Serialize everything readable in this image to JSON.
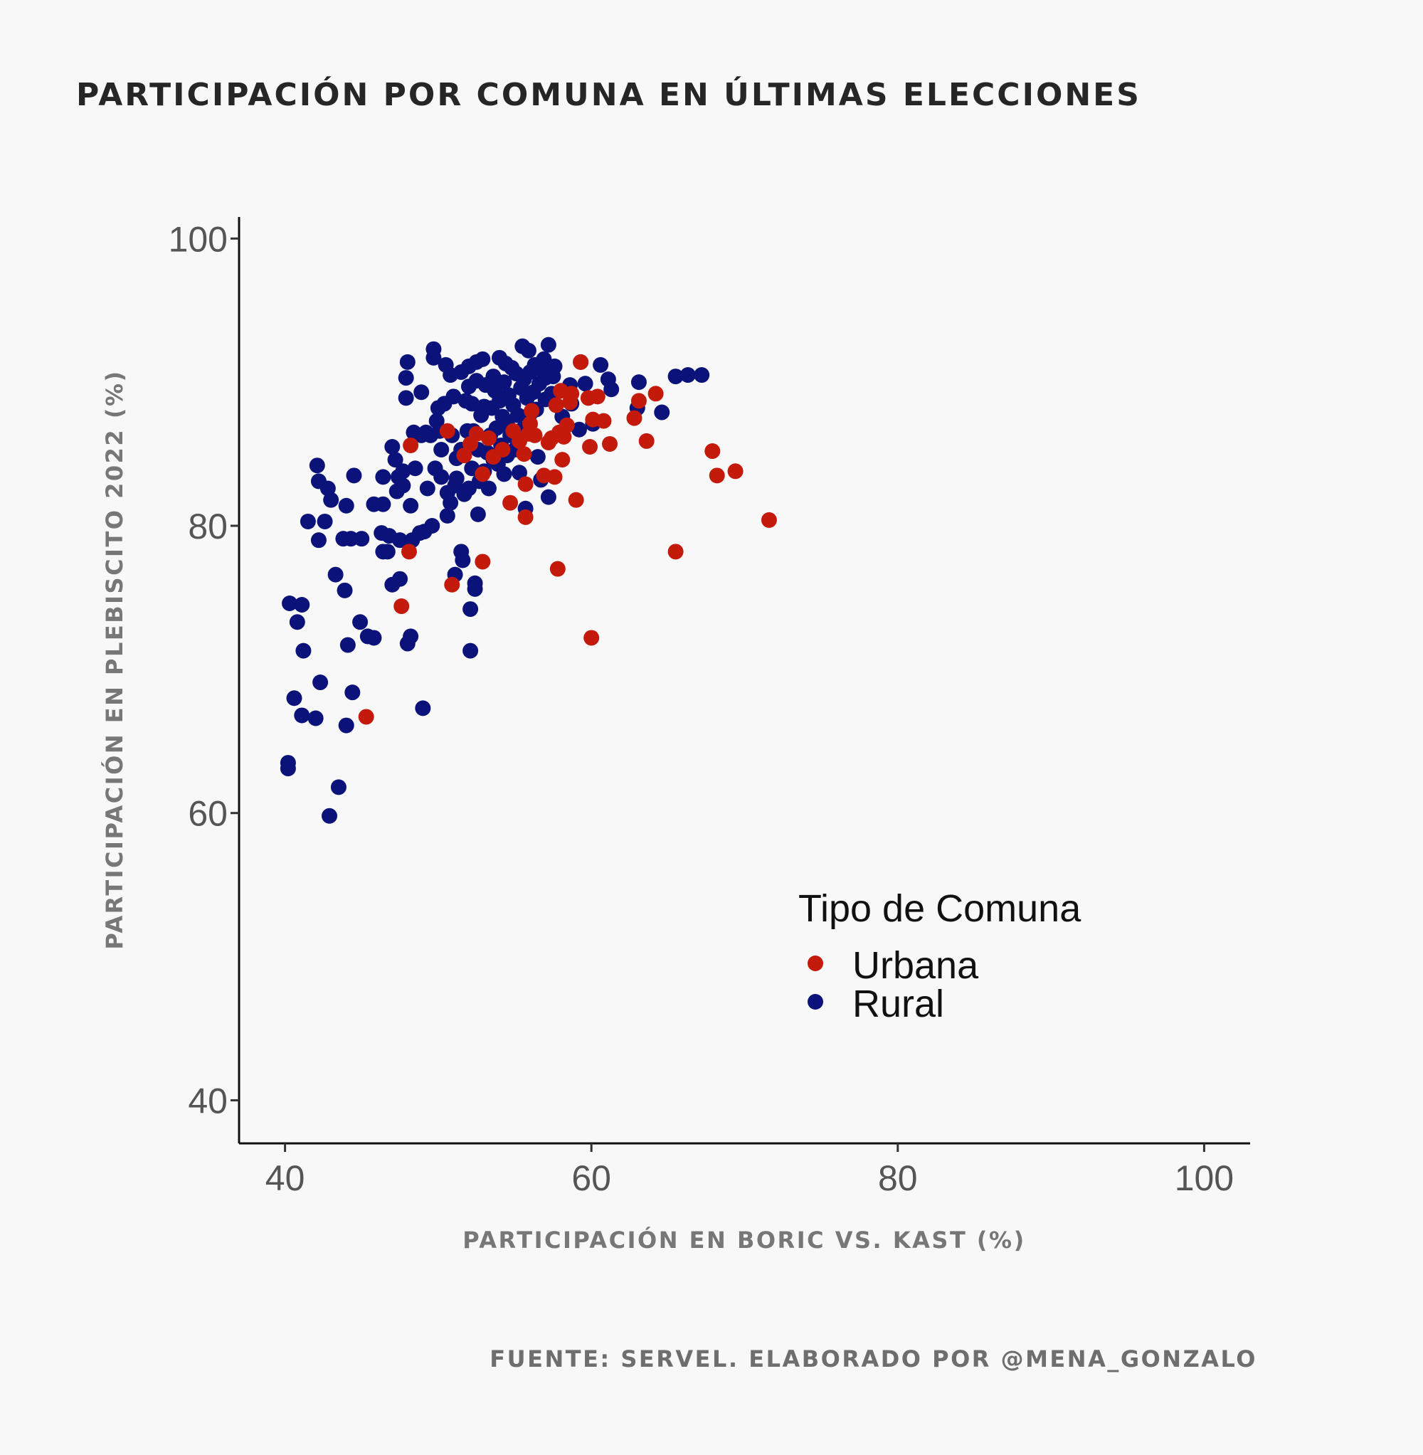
{
  "title": "PARTICIPACIÓN POR COMUNA EN ÚLTIMAS ELECCIONES",
  "footer": "FUENTE: SERVEL. ELABORADO POR @MENA_GONZALO",
  "colors": {
    "background": "#f8f8f8",
    "urbana": "#c41a0c",
    "rural": "#0b137a"
  },
  "chart_data": {
    "type": "scatter",
    "title": "PARTICIPACIÓN POR COMUNA EN ÚLTIMAS ELECCIONES",
    "xlabel": "PARTICIPACIÓN EN BORIC VS. KAST (%)",
    "ylabel": "PARTICIPACIÓN EN PLEBISCITO 2022 (%)",
    "xlim": [
      37,
      103
    ],
    "ylim": [
      37,
      101.5
    ],
    "xticks": [
      40,
      60,
      80,
      100
    ],
    "yticks": [
      40,
      60,
      80,
      100
    ],
    "grid": false,
    "legend": {
      "title": "Tipo de Comuna",
      "position": "inside-right",
      "entries": [
        "Urbana",
        "Rural"
      ]
    },
    "series": [
      {
        "name": "Rural",
        "color": "#0b137a",
        "points": [
          [
            40.2,
            63.5
          ],
          [
            40.2,
            63.1
          ],
          [
            40.3,
            74.6
          ],
          [
            40.6,
            68
          ],
          [
            40.8,
            73.3
          ],
          [
            41.1,
            74.5
          ],
          [
            41.1,
            66.8
          ],
          [
            41.2,
            71.3
          ],
          [
            41.5,
            80.3
          ],
          [
            42,
            66.6
          ],
          [
            42.1,
            84.2
          ],
          [
            42.2,
            79
          ],
          [
            42.2,
            83.1
          ],
          [
            42.3,
            69.1
          ],
          [
            42.6,
            80.3
          ],
          [
            42.8,
            82.6
          ],
          [
            42.9,
            59.8
          ],
          [
            43,
            81.8
          ],
          [
            43.3,
            76.6
          ],
          [
            43.5,
            61.8
          ],
          [
            43.8,
            79.1
          ],
          [
            43.9,
            75.5
          ],
          [
            44,
            66.1
          ],
          [
            44,
            81.4
          ],
          [
            44.1,
            71.7
          ],
          [
            44.3,
            79.1
          ],
          [
            44.4,
            68.4
          ],
          [
            44.5,
            83.5
          ],
          [
            44.9,
            73.3
          ],
          [
            45,
            79.1
          ],
          [
            45.4,
            72.3
          ],
          [
            45.8,
            72.2
          ],
          [
            45.8,
            81.5
          ],
          [
            46.4,
            81.5
          ],
          [
            46.3,
            79.5
          ],
          [
            46.4,
            83.4
          ],
          [
            46.4,
            78.2
          ],
          [
            46.7,
            78.2
          ],
          [
            46.8,
            79.3
          ],
          [
            47,
            75.9
          ],
          [
            47,
            85.5
          ],
          [
            47.2,
            84.6
          ],
          [
            47.4,
            83.4
          ],
          [
            47.3,
            82.4
          ],
          [
            47.5,
            76.3
          ],
          [
            47.5,
            79
          ],
          [
            47.7,
            83.8
          ],
          [
            47.7,
            82.8
          ],
          [
            47.9,
            90.3
          ],
          [
            47.9,
            88.9
          ],
          [
            48,
            91.4
          ],
          [
            48,
            71.8
          ],
          [
            48.2,
            81.4
          ],
          [
            48.2,
            72.3
          ],
          [
            48.4,
            86.5
          ],
          [
            48.3,
            79
          ],
          [
            48.5,
            84
          ],
          [
            48.8,
            79.5
          ],
          [
            48.9,
            86.3
          ],
          [
            48.9,
            89.3
          ],
          [
            49.2,
            86.5
          ],
          [
            49.1,
            79.6
          ],
          [
            49,
            67.3
          ],
          [
            49.3,
            82.6
          ],
          [
            49.5,
            86.3
          ],
          [
            49.6,
            80
          ],
          [
            49.7,
            91.7
          ],
          [
            49.7,
            92.3
          ],
          [
            49.8,
            84
          ],
          [
            49.9,
            87.3
          ],
          [
            50,
            88.2
          ],
          [
            50.1,
            86.6
          ],
          [
            50.2,
            85.3
          ],
          [
            50.2,
            83.4
          ],
          [
            50.4,
            88.5
          ],
          [
            50.5,
            91.2
          ],
          [
            50.6,
            80.7
          ],
          [
            50.6,
            82.3
          ],
          [
            50.8,
            90.5
          ],
          [
            50.8,
            81.6
          ],
          [
            50.9,
            86.3
          ],
          [
            51,
            89
          ],
          [
            51.1,
            82.8
          ],
          [
            51.2,
            84.7
          ],
          [
            51.1,
            76.6
          ],
          [
            51.2,
            83.3
          ],
          [
            51.5,
            90.7
          ],
          [
            51.5,
            85.3
          ],
          [
            51.5,
            78.2
          ],
          [
            51.6,
            77.6
          ],
          [
            51.7,
            82.2
          ],
          [
            51.8,
            88.7
          ],
          [
            51.9,
            86.6
          ],
          [
            52,
            89.7
          ],
          [
            52,
            91.1
          ],
          [
            52,
            82.6
          ],
          [
            52.1,
            71.3
          ],
          [
            52.1,
            74.2
          ],
          [
            52.2,
            84
          ],
          [
            52.3,
            86.6
          ],
          [
            52.2,
            88.5
          ],
          [
            52.4,
            75.6
          ],
          [
            52.4,
            76
          ],
          [
            52.5,
            91.4
          ],
          [
            52.5,
            90.1
          ],
          [
            52.6,
            80.8
          ],
          [
            52.6,
            85.3
          ],
          [
            52.7,
            83.1
          ],
          [
            52.8,
            87.7
          ],
          [
            52.9,
            91.6
          ],
          [
            53,
            88.3
          ],
          [
            53,
            83.8
          ],
          [
            53.1,
            89.8
          ],
          [
            53.2,
            85.1
          ],
          [
            53.3,
            82.6
          ],
          [
            53.4,
            86.3
          ],
          [
            53.5,
            88.2
          ],
          [
            53.6,
            84.6
          ],
          [
            53.6,
            90.4
          ],
          [
            53.7,
            89.4
          ],
          [
            53.8,
            86.8
          ],
          [
            53.9,
            84.3
          ],
          [
            54,
            91.7
          ],
          [
            54,
            88.7
          ],
          [
            54.1,
            85.6
          ],
          [
            54.2,
            87.6
          ],
          [
            54.3,
            90
          ],
          [
            54.3,
            83.6
          ],
          [
            54.4,
            91.3
          ],
          [
            54.5,
            87.1
          ],
          [
            54.5,
            84.9
          ],
          [
            54.6,
            89.1
          ],
          [
            54.7,
            86.3
          ],
          [
            54.8,
            91
          ],
          [
            54.9,
            88.4
          ],
          [
            55,
            85.3
          ],
          [
            55.1,
            90.6
          ],
          [
            55.2,
            87.7
          ],
          [
            55.3,
            83.7
          ],
          [
            55.4,
            89.6
          ],
          [
            55.5,
            92.5
          ],
          [
            55.5,
            86.7
          ],
          [
            55.6,
            90.2
          ],
          [
            55.7,
            81.2
          ],
          [
            55.8,
            88.9
          ],
          [
            55.9,
            92.2
          ],
          [
            56,
            90.7
          ],
          [
            56,
            87.8
          ],
          [
            56.2,
            89.3
          ],
          [
            56.3,
            91.2
          ],
          [
            56.4,
            88.1
          ],
          [
            56.5,
            84.8
          ],
          [
            56.6,
            89.9
          ],
          [
            56.7,
            83.2
          ],
          [
            56.7,
            90.9
          ],
          [
            56.9,
            91.6
          ],
          [
            57,
            88.8
          ],
          [
            57,
            90.3
          ],
          [
            57.2,
            92.6
          ],
          [
            57.2,
            82
          ],
          [
            57.4,
            89.2
          ],
          [
            57.5,
            90.4
          ],
          [
            57.6,
            91.1
          ],
          [
            57.7,
            88.4
          ],
          [
            58.1,
            87.6
          ],
          [
            58.6,
            89.8
          ],
          [
            58.7,
            88.5
          ],
          [
            59.2,
            86.7
          ],
          [
            59.3,
            91.4
          ],
          [
            59.6,
            89.9
          ],
          [
            60.1,
            87.1
          ],
          [
            60.6,
            91.2
          ],
          [
            61.1,
            90.2
          ],
          [
            61.3,
            89.5
          ],
          [
            63,
            88.2
          ],
          [
            63.1,
            90
          ],
          [
            64.6,
            87.9
          ],
          [
            65.5,
            90.4
          ],
          [
            66.3,
            90.5
          ],
          [
            67.2,
            90.5
          ]
        ]
      },
      {
        "name": "Urbana",
        "color": "#c41a0c",
        "points": [
          [
            45.3,
            66.7
          ],
          [
            47.6,
            74.4
          ],
          [
            48.1,
            78.2
          ],
          [
            48.2,
            85.6
          ],
          [
            50.6,
            86.6
          ],
          [
            50.9,
            75.9
          ],
          [
            51.7,
            84.9
          ],
          [
            52.1,
            85.7
          ],
          [
            52.5,
            86.4
          ],
          [
            52.9,
            77.5
          ],
          [
            52.9,
            83.6
          ],
          [
            53.3,
            86.1
          ],
          [
            53.6,
            84.8
          ],
          [
            54.2,
            85.3
          ],
          [
            54.7,
            81.6
          ],
          [
            54.9,
            86.6
          ],
          [
            55.3,
            85.9
          ],
          [
            55.6,
            85
          ],
          [
            55.7,
            80.6
          ],
          [
            55.7,
            82.9
          ],
          [
            55.9,
            86.4
          ],
          [
            56,
            87.1
          ],
          [
            56.1,
            88
          ],
          [
            56.3,
            86.3
          ],
          [
            56.9,
            83.5
          ],
          [
            57.2,
            85.8
          ],
          [
            57.4,
            86.1
          ],
          [
            57.6,
            83.4
          ],
          [
            57.7,
            88.4
          ],
          [
            57.8,
            77
          ],
          [
            57.9,
            86.5
          ],
          [
            58,
            89.4
          ],
          [
            58.1,
            84.6
          ],
          [
            58.2,
            86.2
          ],
          [
            58.4,
            87
          ],
          [
            58.6,
            88.6
          ],
          [
            58.7,
            89.2
          ],
          [
            59,
            81.8
          ],
          [
            59.3,
            91.4
          ],
          [
            59.8,
            88.9
          ],
          [
            59.9,
            85.5
          ],
          [
            60,
            72.2
          ],
          [
            60.1,
            87.4
          ],
          [
            60.4,
            89
          ],
          [
            60.8,
            87.3
          ],
          [
            61.2,
            85.7
          ],
          [
            62.8,
            87.5
          ],
          [
            63.1,
            88.7
          ],
          [
            63.6,
            85.9
          ],
          [
            64.2,
            89.2
          ],
          [
            65.5,
            78.2
          ],
          [
            67.9,
            85.2
          ],
          [
            68.2,
            83.5
          ],
          [
            69.4,
            83.8
          ],
          [
            71.6,
            80.4
          ]
        ]
      }
    ]
  }
}
